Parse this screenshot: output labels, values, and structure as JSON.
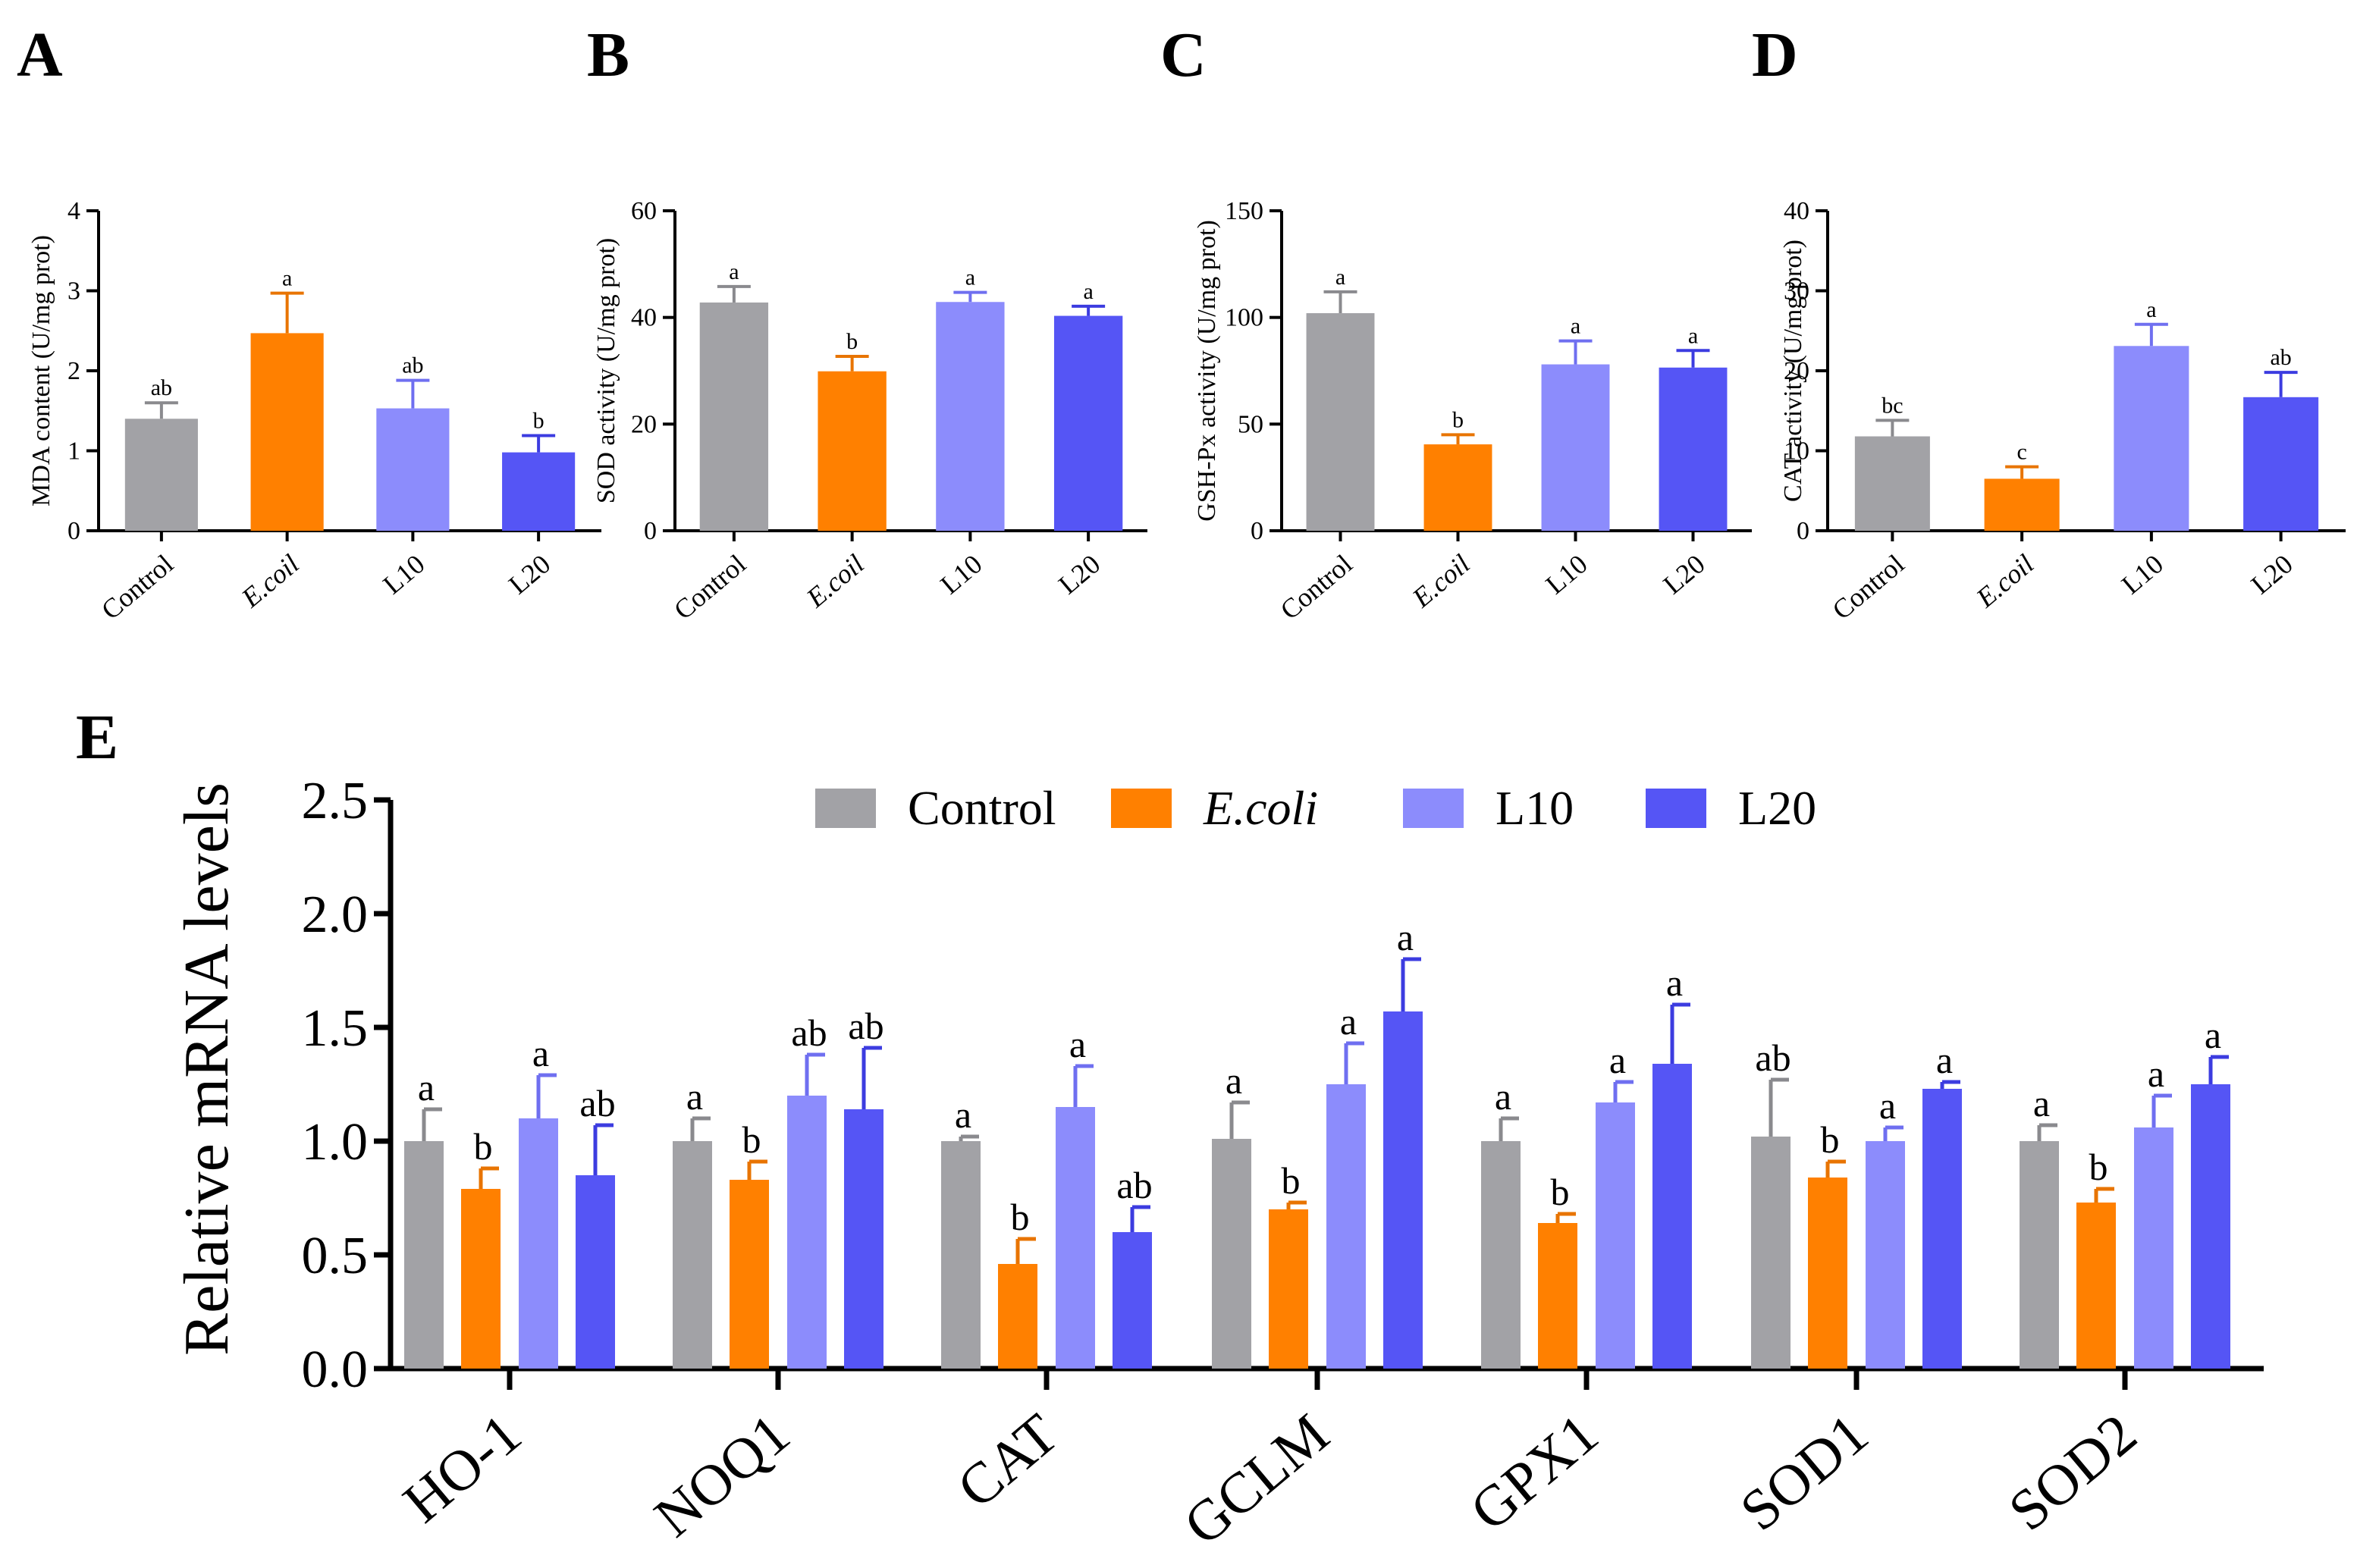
{
  "colors": {
    "control": "#a2a2a6",
    "ecoli": "#ff8000",
    "l10": "#8c8cfc",
    "l20": "#5555f5",
    "control_err": "#8a8a8e",
    "ecoli_err": "#e87400",
    "l10_err": "#6f6ff0",
    "l20_err": "#3c3ce0",
    "axis": "#000000"
  },
  "chart_data": [
    {
      "panel": "A",
      "type": "bar",
      "title": "",
      "xlabel": "",
      "ylabel": "MDA content (U/mg prot)",
      "ylim": [
        0,
        4
      ],
      "yticks": [
        "0",
        "1",
        "2",
        "3",
        "4"
      ],
      "categories": [
        "Control",
        "E.coil",
        "L10",
        "L20"
      ],
      "values": [
        1.4,
        2.47,
        1.53,
        0.98
      ],
      "errors": [
        0.2,
        0.5,
        0.35,
        0.21
      ],
      "letters": [
        "ab",
        "a",
        "ab",
        "b"
      ]
    },
    {
      "panel": "B",
      "type": "bar",
      "title": "",
      "xlabel": "",
      "ylabel": "SOD activity (U/mg prot)",
      "ylim": [
        0,
        60
      ],
      "yticks": [
        "0",
        "20",
        "40",
        "60"
      ],
      "categories": [
        "Control",
        "E.coil",
        "L10",
        "L20"
      ],
      "values": [
        42.8,
        29.9,
        42.9,
        40.3
      ],
      "errors": [
        3.0,
        2.8,
        1.8,
        1.8
      ],
      "letters": [
        "a",
        "b",
        "a",
        "a"
      ]
    },
    {
      "panel": "C",
      "type": "bar",
      "title": "",
      "xlabel": "",
      "ylabel": "GSH-Px activity (U/mg prot)",
      "ylim": [
        0,
        150
      ],
      "yticks": [
        "0",
        "50",
        "100",
        "150"
      ],
      "categories": [
        "Control",
        "E.coil",
        "L10",
        "L20"
      ],
      "values": [
        102,
        40.5,
        78,
        76.5
      ],
      "errors": [
        10,
        4.5,
        11,
        8
      ],
      "letters": [
        "a",
        "b",
        "a",
        "a"
      ]
    },
    {
      "panel": "D",
      "type": "bar",
      "title": "",
      "xlabel": "",
      "ylabel": "CAT activity (U/mg prot)",
      "ylim": [
        0,
        40
      ],
      "yticks": [
        "0",
        "10",
        "20",
        "30",
        "40"
      ],
      "categories": [
        "Control",
        "E.coil",
        "L10",
        "L20"
      ],
      "values": [
        11.8,
        6.5,
        23.1,
        16.7
      ],
      "errors": [
        2.0,
        1.5,
        2.7,
        3.1
      ],
      "letters": [
        "bc",
        "c",
        "a",
        "ab"
      ]
    },
    {
      "panel": "E",
      "type": "bar",
      "title": "",
      "xlabel": "",
      "ylabel": "Relative mRNA levels",
      "ylim": [
        0,
        2.5
      ],
      "yticks": [
        "0.0",
        "0.5",
        "1.0",
        "1.5",
        "2.0",
        "2.5"
      ],
      "categories": [
        "HO-1",
        "NOQ1",
        "CAT",
        "GCLM",
        "GPX1",
        "SOD1",
        "SOD2"
      ],
      "legend": [
        "Control",
        "E.coli",
        "L10",
        "L20"
      ],
      "legend_position": "top-center",
      "series": [
        {
          "name": "Control",
          "values": [
            1.0,
            1.0,
            1.0,
            1.01,
            1.0,
            1.02,
            1.0
          ],
          "errors": [
            0.14,
            0.1,
            0.02,
            0.16,
            0.1,
            0.25,
            0.07
          ],
          "letters": [
            "a",
            "a",
            "a",
            "a",
            "a",
            "ab",
            "a"
          ]
        },
        {
          "name": "E.coli",
          "values": [
            0.79,
            0.83,
            0.46,
            0.7,
            0.64,
            0.84,
            0.73
          ],
          "errors": [
            0.09,
            0.08,
            0.11,
            0.03,
            0.04,
            0.07,
            0.06
          ],
          "letters": [
            "b",
            "b",
            "b",
            "b",
            "b",
            "b",
            "b"
          ]
        },
        {
          "name": "L10",
          "values": [
            1.1,
            1.2,
            1.15,
            1.25,
            1.17,
            1.0,
            1.06
          ],
          "errors": [
            0.19,
            0.18,
            0.18,
            0.18,
            0.09,
            0.06,
            0.14
          ],
          "letters": [
            "a",
            "ab",
            "a",
            "a",
            "a",
            "a",
            "a"
          ]
        },
        {
          "name": "L20",
          "values": [
            0.85,
            1.14,
            0.6,
            1.57,
            1.34,
            1.23,
            1.25
          ],
          "errors": [
            0.22,
            0.27,
            0.11,
            0.23,
            0.26,
            0.03,
            0.12
          ],
          "letters": [
            "ab",
            "ab",
            "ab",
            "a",
            "a",
            "a",
            "a"
          ]
        }
      ]
    }
  ]
}
